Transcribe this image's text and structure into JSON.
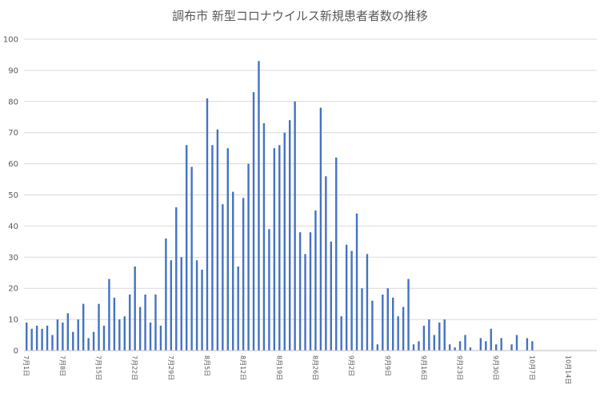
{
  "chart_data": {
    "type": "bar",
    "title": "調布市 新型コロナウイルス新規患者者数の推移",
    "xlabel": "",
    "ylabel": "",
    "ylim": [
      0,
      100
    ],
    "yticks": [
      0,
      10,
      20,
      30,
      40,
      50,
      60,
      70,
      80,
      90,
      100
    ],
    "grid": true,
    "legend": "none",
    "bar_color": "#4472c4",
    "x_tick_labels": [
      "7月1日",
      "7月8日",
      "7月15日",
      "7月22日",
      "7月29日",
      "8月5日",
      "8月12日",
      "8月19日",
      "8月26日",
      "9月2日",
      "9月9日",
      "9月16日",
      "9月23日",
      "9月30日",
      "10月7日",
      "10月14日"
    ],
    "tick_every": 7,
    "values": [
      9,
      7,
      8,
      7,
      8,
      5,
      10,
      9,
      12,
      6,
      10,
      15,
      4,
      6,
      15,
      8,
      23,
      17,
      10,
      11,
      18,
      27,
      14,
      18,
      9,
      18,
      8,
      36,
      29,
      46,
      30,
      66,
      59,
      29,
      26,
      81,
      66,
      71,
      47,
      65,
      51,
      27,
      49,
      60,
      83,
      93,
      73,
      39,
      65,
      66,
      70,
      74,
      80,
      38,
      31,
      38,
      45,
      78,
      56,
      35,
      62,
      11,
      34,
      32,
      44,
      20,
      31,
      16,
      2,
      18,
      20,
      17,
      11,
      14,
      23,
      2,
      3,
      8,
      10,
      5,
      9,
      10,
      2,
      1,
      3,
      5,
      1,
      0,
      4,
      3,
      7,
      2,
      4,
      0,
      2,
      5,
      0,
      4,
      3,
      0,
      0,
      0,
      0,
      0,
      0,
      0,
      0,
      0,
      0,
      0,
      0
    ]
  }
}
